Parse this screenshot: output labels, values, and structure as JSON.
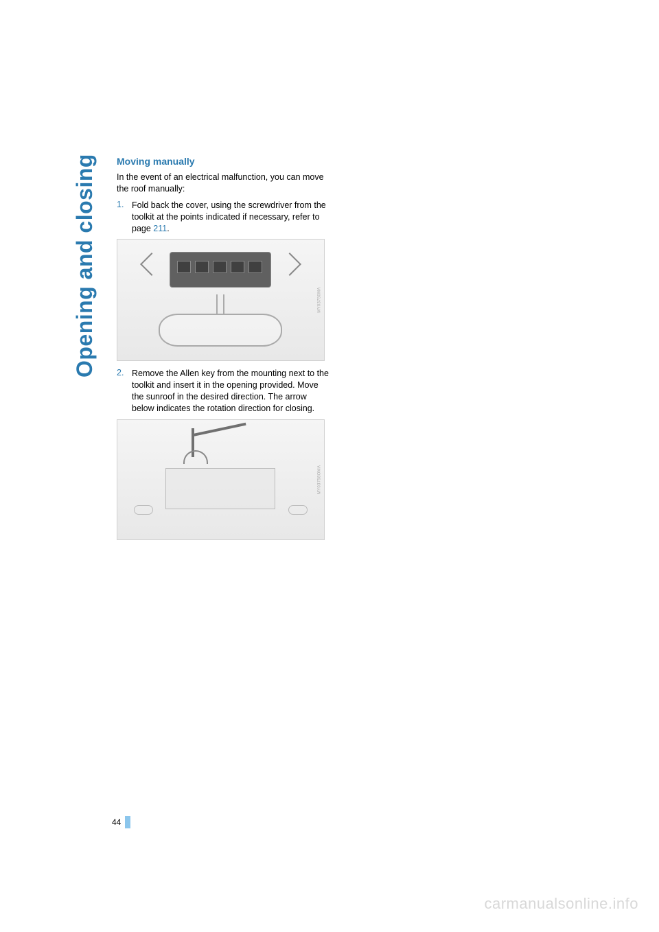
{
  "sidebar": {
    "section_title": "Opening and closing"
  },
  "content": {
    "heading": "Moving manually",
    "intro": "In the event of an electrical malfunction, you can move the roof manually:",
    "steps": [
      {
        "number": "1.",
        "text_before_link": "Fold back the cover, using the screwdriver from the toolkit at the points indicated if necessary, refer to page ",
        "link": "211",
        "text_after_link": "."
      },
      {
        "number": "2.",
        "text_before_link": "Remove the Allen key from the mounting next to the toolkit and insert it in the opening provided. Move the sunroof in the desired direction. The arrow below indicates the rotation direction for closing.",
        "link": "",
        "text_after_link": ""
      }
    ],
    "illustration_codes": [
      "MY03750MA",
      "MY03758OMA"
    ]
  },
  "footer": {
    "page_number": "44",
    "watermark": "carmanualsonline.info"
  },
  "colors": {
    "accent": "#2a7aaf",
    "page_bar": "#8cc6ec",
    "watermark": "#d8d8d8",
    "body_text": "#000000"
  }
}
